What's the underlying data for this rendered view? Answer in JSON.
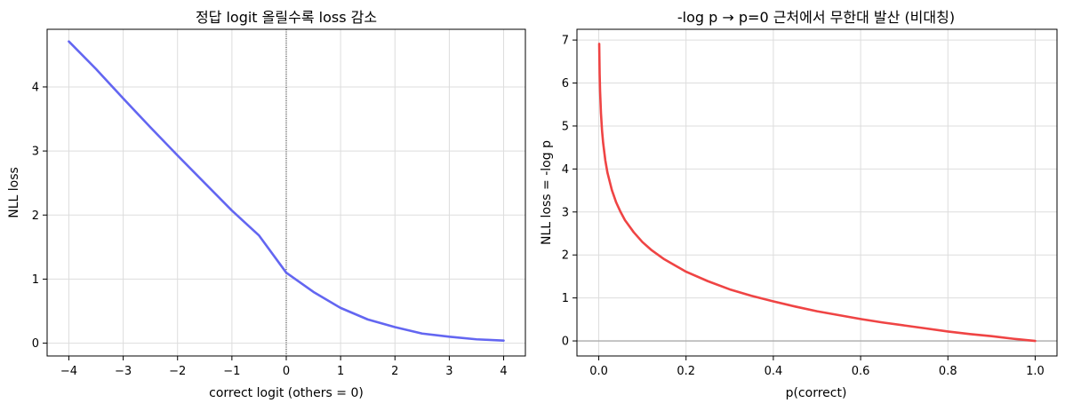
{
  "colors": {
    "left_line": "#6366f1",
    "right_line": "#ef4444",
    "grid": "#dddddd",
    "zero_line": "#aaaaaa"
  },
  "chart_data": [
    {
      "type": "line",
      "title": "정답 logit 올릴수록 loss 감소",
      "xlabel": "correct logit (others = 0)",
      "ylabel": "NLL loss",
      "xlim": [
        -4.4,
        4.4
      ],
      "ylim": [
        -0.2,
        4.9
      ],
      "xticks": [
        -4,
        -3,
        -2,
        -1,
        0,
        1,
        2,
        3,
        4
      ],
      "xtick_labels": [
        "−4",
        "−3",
        "−2",
        "−1",
        "0",
        "1",
        "2",
        "3",
        "4"
      ],
      "yticks": [
        0,
        1,
        2,
        3,
        4
      ],
      "ytick_labels": [
        "0",
        "1",
        "2",
        "3",
        "4"
      ],
      "grid": true,
      "vline_x": 0,
      "series": [
        {
          "x": [
            -4,
            -3.5,
            -3,
            -2.5,
            -2,
            -1.5,
            -1,
            -0.5,
            0,
            0.5,
            1,
            1.5,
            2,
            2.5,
            3,
            3.5,
            4
          ],
          "y": [
            4.71,
            4.28,
            3.82,
            3.37,
            2.93,
            2.5,
            2.07,
            1.68,
            1.1,
            0.8,
            0.55,
            0.37,
            0.25,
            0.15,
            0.1,
            0.06,
            0.04
          ]
        }
      ]
    },
    {
      "type": "line",
      "title": "-log p → p=0 근처에서 무한대 발산 (비대칭)",
      "xlabel": "p(correct)",
      "ylabel": "NLL loss = -log p",
      "xlim": [
        -0.05,
        1.05
      ],
      "ylim": [
        -0.35,
        7.25
      ],
      "xticks": [
        0.0,
        0.2,
        0.4,
        0.6,
        0.8,
        1.0
      ],
      "xtick_labels": [
        "0.0",
        "0.2",
        "0.4",
        "0.6",
        "0.8",
        "1.0"
      ],
      "yticks": [
        0,
        1,
        2,
        3,
        4,
        5,
        6,
        7
      ],
      "ytick_labels": [
        "0",
        "1",
        "2",
        "3",
        "4",
        "5",
        "6",
        "7"
      ],
      "grid": true,
      "hline_y": 0,
      "series": [
        {
          "x": [
            0.001,
            0.002,
            0.003,
            0.005,
            0.0075,
            0.01,
            0.015,
            0.02,
            0.03,
            0.04,
            0.05,
            0.06,
            0.08,
            0.1,
            0.12,
            0.15,
            0.2,
            0.25,
            0.3,
            0.35,
            0.4,
            0.45,
            0.5,
            0.55,
            0.6,
            0.65,
            0.7,
            0.75,
            0.8,
            0.85,
            0.9,
            0.95,
            1.0
          ],
          "y": [
            6.91,
            6.21,
            5.81,
            5.3,
            4.89,
            4.61,
            4.2,
            3.91,
            3.51,
            3.22,
            3.0,
            2.81,
            2.53,
            2.3,
            2.12,
            1.9,
            1.61,
            1.39,
            1.2,
            1.05,
            0.92,
            0.8,
            0.69,
            0.6,
            0.51,
            0.43,
            0.36,
            0.29,
            0.22,
            0.16,
            0.11,
            0.05,
            0.0
          ]
        }
      ]
    }
  ]
}
